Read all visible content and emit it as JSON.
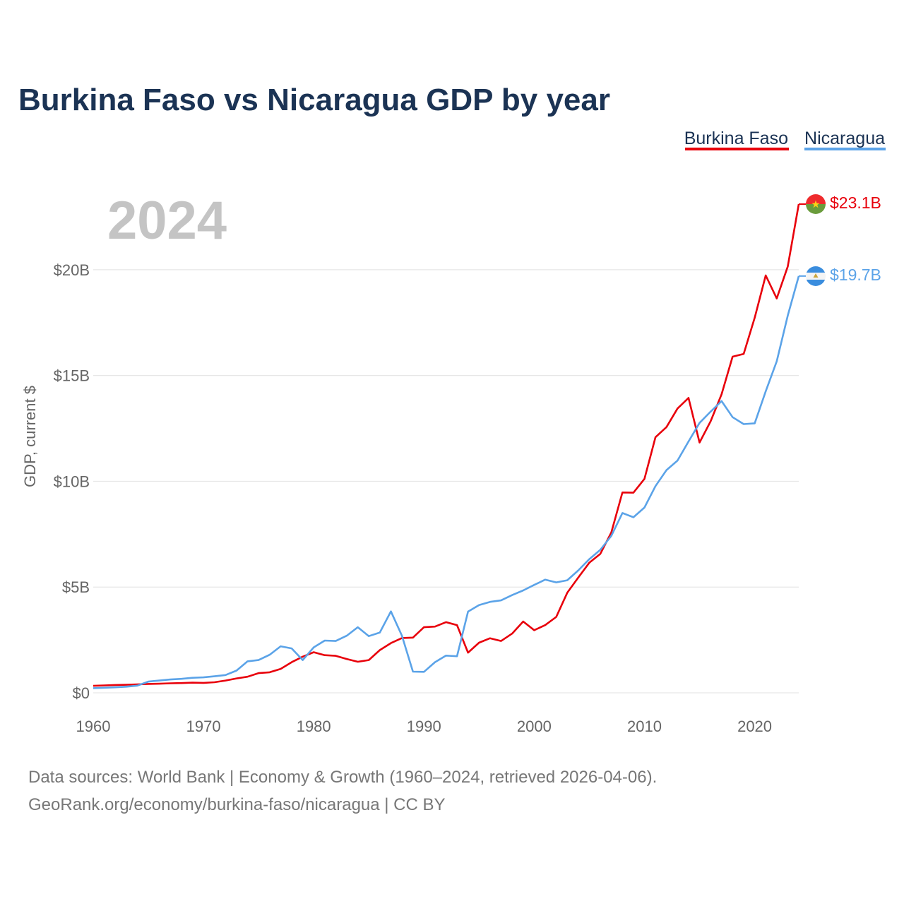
{
  "title": "Burkina Faso vs Nicaragua GDP by year",
  "current_year_label": "2024",
  "footer": {
    "line1": "Data sources: World Bank | Economy & Growth (1960–2024, retrieved 2026-04-06).",
    "line2": "GeoRank.org/economy/burkina-faso/nicaragua | CC BY"
  },
  "chart_data": {
    "type": "line",
    "title": "Burkina Faso vs Nicaragua GDP by year",
    "xlabel": "",
    "ylabel": "GDP, current $",
    "xlim": [
      1960,
      2024
    ],
    "ylim": [
      0,
      23.1
    ],
    "x_ticks": [
      1960,
      1970,
      1980,
      1990,
      2000,
      2010,
      2020
    ],
    "y_ticks": [
      {
        "value": 0,
        "label": "$0"
      },
      {
        "value": 5,
        "label": "$5B"
      },
      {
        "value": 10,
        "label": "$10B"
      },
      {
        "value": 15,
        "label": "$15B"
      },
      {
        "value": 20,
        "label": "$20B"
      }
    ],
    "grid": true,
    "legend_position": "top-right",
    "x": [
      1960,
      1961,
      1962,
      1963,
      1964,
      1965,
      1966,
      1967,
      1968,
      1969,
      1970,
      1971,
      1972,
      1973,
      1974,
      1975,
      1976,
      1977,
      1978,
      1979,
      1980,
      1981,
      1982,
      1983,
      1984,
      1985,
      1986,
      1987,
      1988,
      1989,
      1990,
      1991,
      1992,
      1993,
      1994,
      1995,
      1996,
      1997,
      1998,
      1999,
      2000,
      2001,
      2002,
      2003,
      2004,
      2005,
      2006,
      2007,
      2008,
      2009,
      2010,
      2011,
      2012,
      2013,
      2014,
      2015,
      2016,
      2017,
      2018,
      2019,
      2020,
      2021,
      2022,
      2023,
      2024
    ],
    "series": [
      {
        "name": "Burkina Faso",
        "color": "#e8000b",
        "end_label": "$23.1B",
        "flag": "burkina-faso-flag-icon",
        "values": [
          0.33,
          0.35,
          0.37,
          0.38,
          0.4,
          0.42,
          0.43,
          0.45,
          0.46,
          0.48,
          0.47,
          0.5,
          0.58,
          0.68,
          0.76,
          0.93,
          0.97,
          1.13,
          1.45,
          1.71,
          1.92,
          1.78,
          1.75,
          1.6,
          1.47,
          1.55,
          2.02,
          2.35,
          2.59,
          2.61,
          3.1,
          3.13,
          3.34,
          3.2,
          1.9,
          2.37,
          2.58,
          2.45,
          2.8,
          3.37,
          2.96,
          3.2,
          3.59,
          4.73,
          5.45,
          6.15,
          6.57,
          7.58,
          9.47,
          9.46,
          10.11,
          12.08,
          12.56,
          13.44,
          13.94,
          11.83,
          12.83,
          14.11,
          15.89,
          16.02,
          17.73,
          19.73,
          18.64,
          20.15,
          23.1
        ]
      },
      {
        "name": "Nicaragua",
        "color": "#5ba3e8",
        "end_label": "$19.7B",
        "flag": "nicaragua-flag-icon",
        "values": [
          0.22,
          0.24,
          0.26,
          0.29,
          0.34,
          0.53,
          0.58,
          0.63,
          0.66,
          0.71,
          0.73,
          0.78,
          0.84,
          1.05,
          1.49,
          1.55,
          1.8,
          2.2,
          2.1,
          1.55,
          2.15,
          2.47,
          2.45,
          2.7,
          3.1,
          2.68,
          2.85,
          3.85,
          2.7,
          1.0,
          0.99,
          1.45,
          1.76,
          1.73,
          3.84,
          4.15,
          4.3,
          4.37,
          4.62,
          4.84,
          5.1,
          5.35,
          5.22,
          5.32,
          5.79,
          6.32,
          6.76,
          7.42,
          8.5,
          8.3,
          8.76,
          9.77,
          10.53,
          10.98,
          11.88,
          12.76,
          13.29,
          13.79,
          13.03,
          12.7,
          12.74,
          14.25,
          15.67,
          17.83,
          19.7
        ]
      }
    ]
  }
}
